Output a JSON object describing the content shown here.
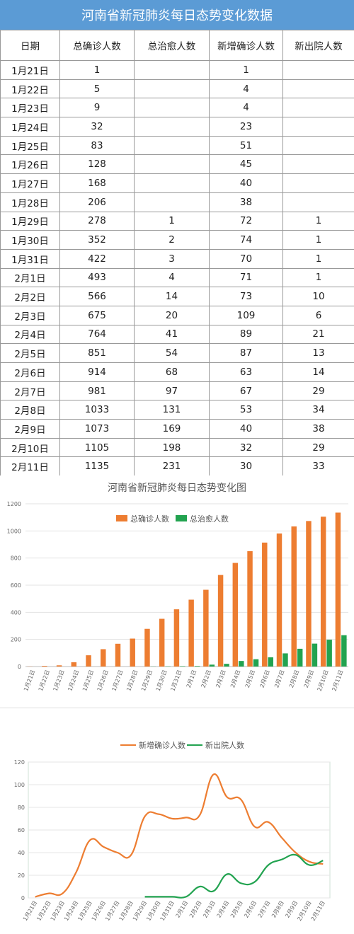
{
  "page_title": "河南省新冠肺炎每日态势变化数据",
  "table": {
    "headers": [
      "日期",
      "总确诊人数",
      "总治愈人数",
      "新增确诊人数",
      "新出院人数"
    ],
    "rows": [
      [
        "1月21日",
        "1",
        "",
        "1",
        ""
      ],
      [
        "1月22日",
        "5",
        "",
        "4",
        ""
      ],
      [
        "1月23日",
        "9",
        "",
        "4",
        ""
      ],
      [
        "1月24日",
        "32",
        "",
        "23",
        ""
      ],
      [
        "1月25日",
        "83",
        "",
        "51",
        ""
      ],
      [
        "1月26日",
        "128",
        "",
        "45",
        ""
      ],
      [
        "1月27日",
        "168",
        "",
        "40",
        ""
      ],
      [
        "1月28日",
        "206",
        "",
        "38",
        ""
      ],
      [
        "1月29日",
        "278",
        "1",
        "72",
        "1"
      ],
      [
        "1月30日",
        "352",
        "2",
        "74",
        "1"
      ],
      [
        "1月31日",
        "422",
        "3",
        "70",
        "1"
      ],
      [
        "2月1日",
        "493",
        "4",
        "71",
        "1"
      ],
      [
        "2月2日",
        "566",
        "14",
        "73",
        "10"
      ],
      [
        "2月3日",
        "675",
        "20",
        "109",
        "6"
      ],
      [
        "2月4日",
        "764",
        "41",
        "89",
        "21"
      ],
      [
        "2月5日",
        "851",
        "54",
        "87",
        "13"
      ],
      [
        "2月6日",
        "914",
        "68",
        "63",
        "14"
      ],
      [
        "2月7日",
        "981",
        "97",
        "67",
        "29"
      ],
      [
        "2月8日",
        "1033",
        "131",
        "53",
        "34"
      ],
      [
        "2月9日",
        "1073",
        "169",
        "40",
        "38"
      ],
      [
        "2月10日",
        "1105",
        "198",
        "32",
        "29"
      ],
      [
        "2月11日",
        "1135",
        "231",
        "30",
        "33"
      ]
    ]
  },
  "colors": {
    "header_bg": "#5b9bd5",
    "orange": "#ed7d31",
    "green": "#22a350"
  },
  "chart_data": [
    {
      "type": "bar",
      "title": "河南省新冠肺炎每日态势变化图",
      "categories": [
        "1月21日",
        "1月22日",
        "1月23日",
        "1月24日",
        "1月25日",
        "1月26日",
        "1月27日",
        "1月28日",
        "1月29日",
        "1月30日",
        "1月31日",
        "2月1日",
        "2月2日",
        "2月3日",
        "2月4日",
        "2月5日",
        "2月6日",
        "2月7日",
        "2月8日",
        "2月9日",
        "2月10日",
        "2月11日"
      ],
      "series": [
        {
          "name": "总确诊人数",
          "color": "#ed7d31",
          "values": [
            1,
            5,
            9,
            32,
            83,
            128,
            168,
            206,
            278,
            352,
            422,
            493,
            566,
            675,
            764,
            851,
            914,
            981,
            1033,
            1073,
            1105,
            1135
          ]
        },
        {
          "name": "总治愈人数",
          "color": "#22a350",
          "values": [
            0,
            0,
            0,
            0,
            0,
            0,
            0,
            0,
            1,
            2,
            3,
            4,
            14,
            20,
            41,
            54,
            68,
            97,
            131,
            169,
            198,
            231
          ]
        }
      ],
      "ylim": [
        0,
        1200
      ],
      "yticks": [
        0,
        200,
        400,
        600,
        800,
        1000,
        1200
      ],
      "grid": true,
      "legend": "top"
    },
    {
      "type": "line",
      "title": "",
      "categories": [
        "1月21日",
        "1月22日",
        "1月23日",
        "1月24日",
        "1月25日",
        "1月26日",
        "1月27日",
        "1月28日",
        "1月29日",
        "1月30日",
        "1月31日",
        "2月1日",
        "2月2日",
        "2月3日",
        "2月4日",
        "2月5日",
        "2月6日",
        "2月7日",
        "2月8日",
        "2月9日",
        "2月10日",
        "2月11日"
      ],
      "series": [
        {
          "name": "新增确诊人数",
          "color": "#ed7d31",
          "values": [
            1,
            4,
            4,
            23,
            51,
            45,
            40,
            38,
            72,
            74,
            70,
            71,
            73,
            109,
            89,
            87,
            63,
            67,
            53,
            40,
            32,
            30
          ]
        },
        {
          "name": "新出院人数",
          "color": "#22a350",
          "values": [
            null,
            null,
            null,
            null,
            null,
            null,
            null,
            null,
            1,
            1,
            1,
            1,
            10,
            6,
            21,
            13,
            14,
            29,
            34,
            38,
            29,
            33
          ]
        }
      ],
      "ylim": [
        0,
        120
      ],
      "yticks": [
        0,
        20,
        40,
        60,
        80,
        100,
        120
      ],
      "grid": true,
      "legend": "top",
      "smooth": true
    }
  ]
}
